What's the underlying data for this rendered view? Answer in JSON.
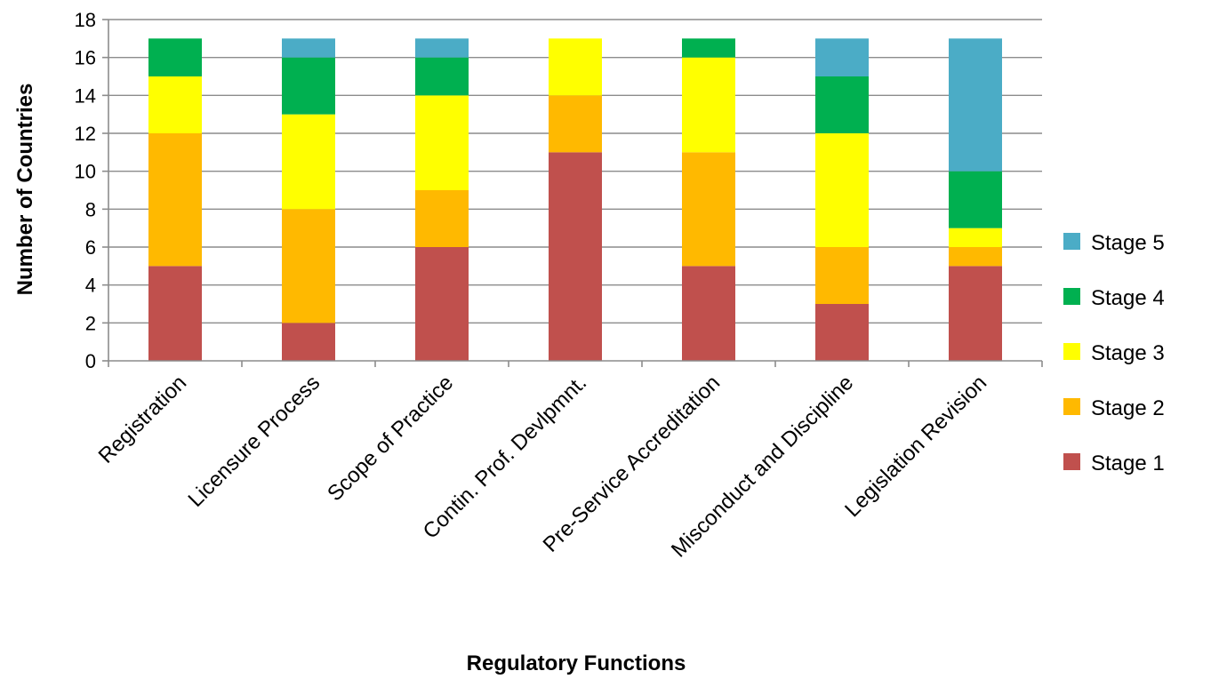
{
  "chart_data": {
    "type": "bar",
    "stacked": true,
    "title": "",
    "xlabel": "Regulatory Functions",
    "ylabel": "Number of Countries",
    "ylim": [
      0,
      18
    ],
    "yticks": [
      0,
      2,
      4,
      6,
      8,
      10,
      12,
      14,
      16,
      18
    ],
    "grid": true,
    "legend_position": "right",
    "categories": [
      "Registration",
      "Licensure Process",
      "Scope of Practice",
      "Contin. Prof. Devlpmnt.",
      "Pre-Service Accreditation",
      "Misconduct and Discipline",
      "Legislation Revision"
    ],
    "series": [
      {
        "name": "Stage 1",
        "color": "#c0504d",
        "values": [
          5,
          2,
          6,
          11,
          5,
          3,
          5
        ]
      },
      {
        "name": "Stage 2",
        "color": "#ffb900",
        "values": [
          7,
          6,
          3,
          3,
          6,
          3,
          1
        ]
      },
      {
        "name": "Stage 3",
        "color": "#ffff00",
        "values": [
          3,
          5,
          5,
          3,
          5,
          6,
          1
        ]
      },
      {
        "name": "Stage 4",
        "color": "#00b050",
        "values": [
          2,
          3,
          2,
          0,
          1,
          3,
          3
        ]
      },
      {
        "name": "Stage 5",
        "color": "#4bacc6",
        "values": [
          0,
          1,
          1,
          0,
          0,
          2,
          7
        ]
      }
    ]
  }
}
